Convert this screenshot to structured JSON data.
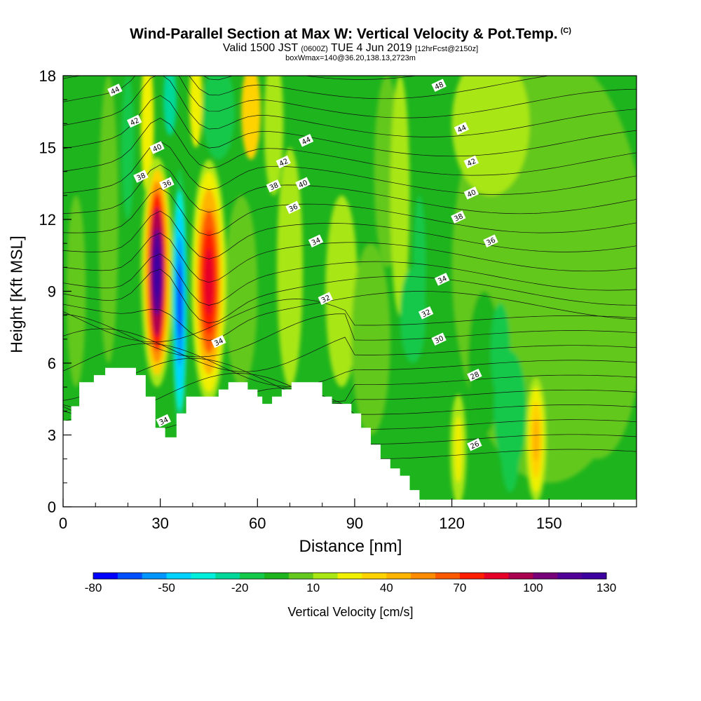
{
  "title": "Wind-Parallel Section at Max W: Vertical Velocity & Pot.Temp.",
  "title_mark": "(C)",
  "subtitle": {
    "valid": "Valid 1500 JST",
    "utc": "(0600Z)",
    "date": "TUE 4 Jun 2019",
    "forecast": "[12hrFcst@2150z]"
  },
  "box_info": "boxWmax=140@36.20,138.13,2723m",
  "chart_data": {
    "type": "contour-cross-section",
    "xlabel": "Distance [nm]",
    "ylabel": "Height [Kft MSL]",
    "xlim": [
      0,
      177
    ],
    "ylim": [
      0,
      18
    ],
    "x_ticks": [
      0,
      30,
      60,
      90,
      120,
      150
    ],
    "y_ticks": [
      0,
      3,
      6,
      9,
      12,
      15,
      18
    ],
    "colorbar": {
      "label": "Vertical Velocity [cm/s]",
      "range": [
        -80,
        130
      ],
      "step": 10,
      "tick_labels": [
        -80,
        -50,
        -20,
        10,
        40,
        70,
        100,
        130
      ],
      "colors": [
        "#0000ff",
        "#0050ff",
        "#0096ff",
        "#00d2ff",
        "#00eedc",
        "#00d89a",
        "#14c84a",
        "#1eb41e",
        "#64c81e",
        "#a8e614",
        "#f0f000",
        "#ffd200",
        "#ffb400",
        "#ff8c00",
        "#ff5a00",
        "#ff1e00",
        "#e60028",
        "#aa0050",
        "#780078",
        "#500096",
        "#3c00a0"
      ]
    },
    "terrain": [
      [
        0,
        3.6
      ],
      [
        2.5,
        3.6
      ],
      [
        2.5,
        4.2
      ],
      [
        5,
        4.2
      ],
      [
        5,
        5.2
      ],
      [
        9.5,
        5.2
      ],
      [
        9.5,
        5.5
      ],
      [
        13,
        5.5
      ],
      [
        13,
        5.8
      ],
      [
        22.5,
        5.8
      ],
      [
        22.5,
        5.5
      ],
      [
        25.5,
        5.5
      ],
      [
        25.5,
        4.6
      ],
      [
        28.5,
        4.6
      ],
      [
        28.5,
        3.3
      ],
      [
        31.5,
        3.3
      ],
      [
        31.5,
        2.9
      ],
      [
        35,
        2.9
      ],
      [
        35,
        3.9
      ],
      [
        38,
        3.9
      ],
      [
        38,
        4.6
      ],
      [
        48,
        4.6
      ],
      [
        48,
        4.9
      ],
      [
        51,
        4.9
      ],
      [
        51,
        5.2
      ],
      [
        57,
        5.2
      ],
      [
        57,
        4.9
      ],
      [
        60,
        4.9
      ],
      [
        60,
        4.6
      ],
      [
        61.5,
        4.6
      ],
      [
        61.5,
        4.3
      ],
      [
        64.5,
        4.3
      ],
      [
        64.5,
        4.6
      ],
      [
        67.5,
        4.6
      ],
      [
        67.5,
        4.9
      ],
      [
        70.5,
        4.9
      ],
      [
        70.5,
        5.2
      ],
      [
        80,
        5.2
      ],
      [
        80,
        4.6
      ],
      [
        83,
        4.6
      ],
      [
        83,
        4.3
      ],
      [
        89,
        4.3
      ],
      [
        89,
        3.9
      ],
      [
        92,
        3.9
      ],
      [
        92,
        3.3
      ],
      [
        95,
        3.3
      ],
      [
        95,
        2.6
      ],
      [
        98,
        2.6
      ],
      [
        98,
        2.0
      ],
      [
        101,
        2.0
      ],
      [
        101,
        1.6
      ],
      [
        104,
        1.6
      ],
      [
        104,
        1.3
      ],
      [
        107,
        1.3
      ],
      [
        107,
        0.7
      ],
      [
        110,
        0.7
      ],
      [
        110,
        0.3
      ],
      [
        112,
        0.3
      ],
      [
        112,
        0.0
      ],
      [
        0,
        0.0
      ]
    ],
    "features": [
      {
        "type": "updraft",
        "x": 29,
        "y": 9.8,
        "w": 140
      },
      {
        "type": "downdraft",
        "x": 36,
        "y": 8.6,
        "w": -75
      },
      {
        "type": "updraft",
        "x": 45,
        "y": 9.4,
        "w": 85
      },
      {
        "type": "updraft",
        "x": 146,
        "y": 2.8,
        "w": 40
      },
      {
        "type": "updraft",
        "x": 122,
        "y": 2.4,
        "w": 20
      }
    ],
    "theta_labels": [
      {
        "text": "44",
        "x": 16,
        "y": 17.4
      },
      {
        "text": "42",
        "x": 22,
        "y": 16.1
      },
      {
        "text": "40",
        "x": 29,
        "y": 15.0
      },
      {
        "text": "38",
        "x": 24,
        "y": 13.8
      },
      {
        "text": "36",
        "x": 32,
        "y": 13.5
      },
      {
        "text": "44",
        "x": 75,
        "y": 15.3
      },
      {
        "text": "42",
        "x": 68,
        "y": 14.4
      },
      {
        "text": "38",
        "x": 65,
        "y": 13.4
      },
      {
        "text": "40",
        "x": 74,
        "y": 13.5
      },
      {
        "text": "36",
        "x": 71,
        "y": 12.5
      },
      {
        "text": "34",
        "x": 78,
        "y": 11.1
      },
      {
        "text": "32",
        "x": 81,
        "y": 8.7
      },
      {
        "text": "34",
        "x": 48,
        "y": 6.9
      },
      {
        "text": "34",
        "x": 31,
        "y": 3.6
      },
      {
        "text": "48",
        "x": 116,
        "y": 17.6
      },
      {
        "text": "44",
        "x": 123,
        "y": 15.8
      },
      {
        "text": "42",
        "x": 126,
        "y": 14.4
      },
      {
        "text": "40",
        "x": 126,
        "y": 13.1
      },
      {
        "text": "38",
        "x": 122,
        "y": 12.1
      },
      {
        "text": "36",
        "x": 132,
        "y": 11.1
      },
      {
        "text": "34",
        "x": 117,
        "y": 9.5
      },
      {
        "text": "32",
        "x": 112,
        "y": 8.1
      },
      {
        "text": "30",
        "x": 116,
        "y": 7.0
      },
      {
        "text": "28",
        "x": 127,
        "y": 5.5
      },
      {
        "text": "26",
        "x": 127,
        "y": 2.6
      }
    ]
  }
}
